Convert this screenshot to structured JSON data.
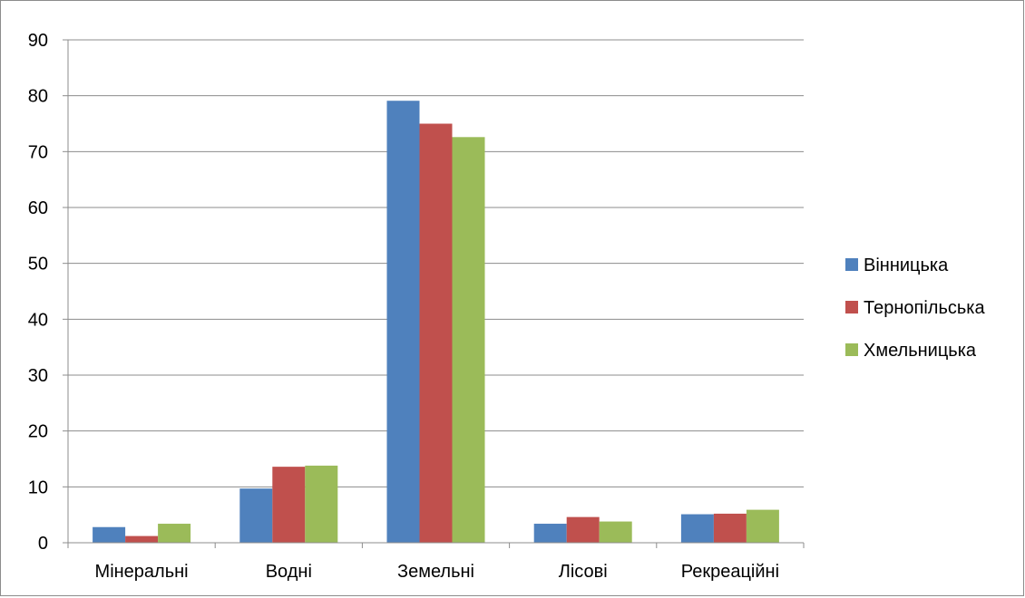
{
  "chart_data": {
    "type": "bar",
    "title": "",
    "xlabel": "",
    "ylabel": "",
    "categories": [
      "Мінеральні",
      "Водні",
      "Земельні",
      "Лісові",
      "Рекреаційні"
    ],
    "series": [
      {
        "name": "Вінницька",
        "color": "#4f81bd",
        "values": [
          2.8,
          9.7,
          79.1,
          3.4,
          5.1
        ]
      },
      {
        "name": "Тернопільська",
        "color": "#c0504d",
        "values": [
          1.2,
          13.6,
          75.0,
          4.6,
          5.2
        ]
      },
      {
        "name": "Хмельницька",
        "color": "#9bbb59",
        "values": [
          3.4,
          13.8,
          72.6,
          3.8,
          5.9
        ]
      }
    ],
    "ylim": [
      0,
      90
    ],
    "yticks": [
      0,
      10,
      20,
      30,
      40,
      50,
      60,
      70,
      80,
      90
    ],
    "grid": true,
    "legend_position": "right"
  }
}
